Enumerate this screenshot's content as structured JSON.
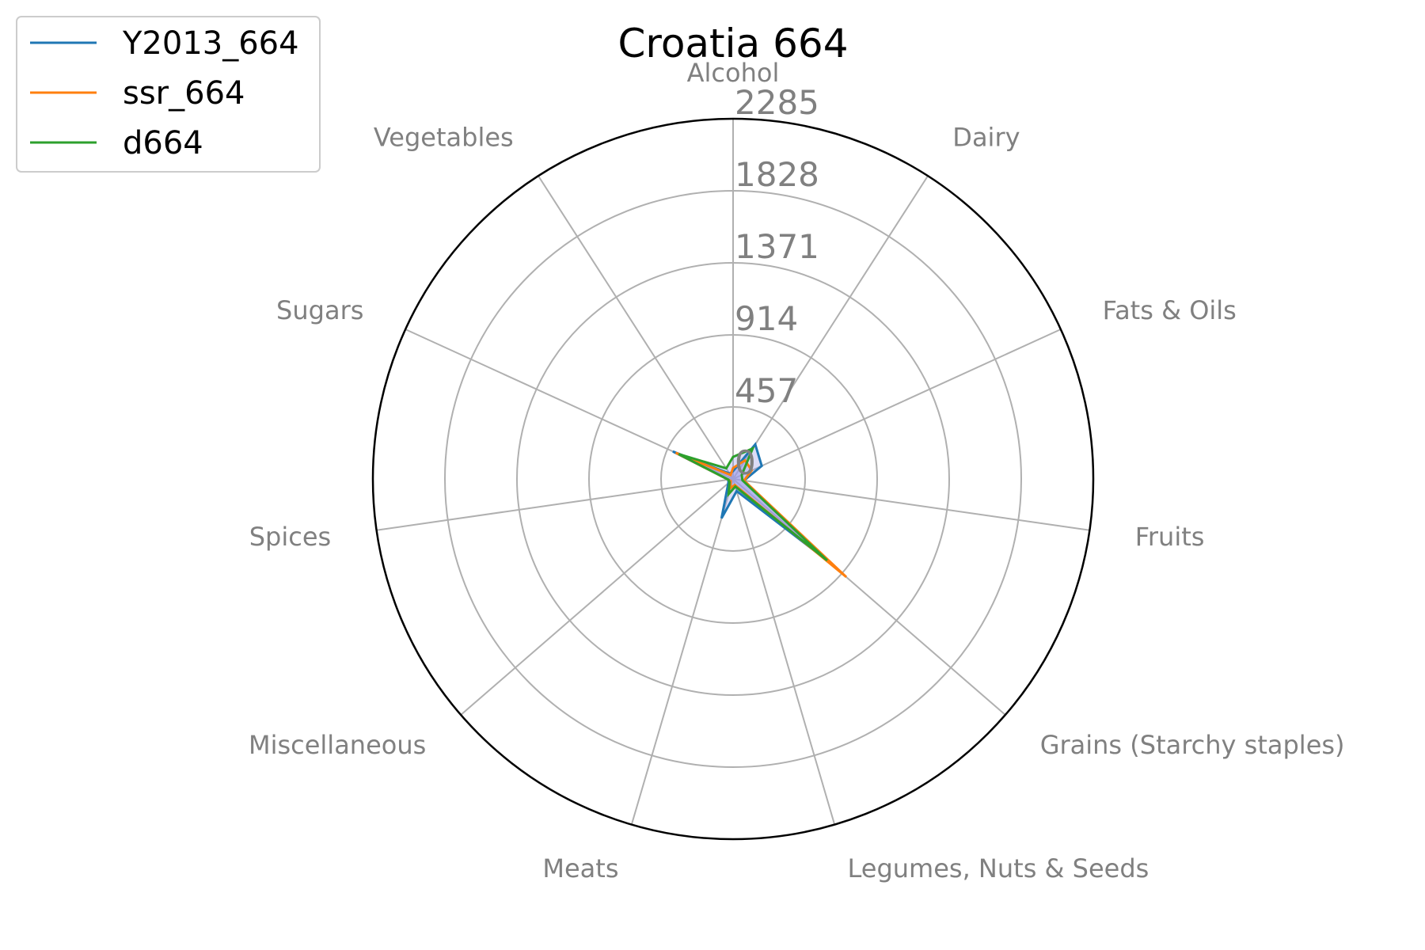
{
  "chart_data": {
    "type": "radar",
    "title": "Croatia 664",
    "categories": [
      "Alcohol",
      "Dairy",
      "Fats & Oils",
      "Fruits",
      "Grains (Starchy staples)",
      "Legumes, Nuts & Seeds",
      "Meats",
      "Miscellaneous",
      "Spices",
      "Sugars",
      "Vegetables"
    ],
    "r_ticks": [
      0,
      457,
      914,
      1371,
      1828,
      2285
    ],
    "r_tick_labels": [
      "0",
      "457",
      "914",
      "1371",
      "1828",
      "2285"
    ],
    "rlim": [
      0,
      2285
    ],
    "grid": true,
    "legend_position": "top-left",
    "series": [
      {
        "name": "Y2013_664",
        "color": "#1f77b4",
        "values": [
          50,
          260,
          200,
          70,
          790,
          80,
          260,
          40,
          30,
          420,
          40
        ]
      },
      {
        "name": "ssr_664",
        "color": "#ff7f0e",
        "values": [
          70,
          140,
          130,
          70,
          950,
          40,
          60,
          20,
          30,
          400,
          30
        ]
      },
      {
        "name": "d664",
        "color": "#2ca02c",
        "values": [
          140,
          230,
          60,
          60,
          790,
          50,
          100,
          30,
          30,
          380,
          80
        ]
      }
    ],
    "fill_color": "#9b9be8"
  }
}
